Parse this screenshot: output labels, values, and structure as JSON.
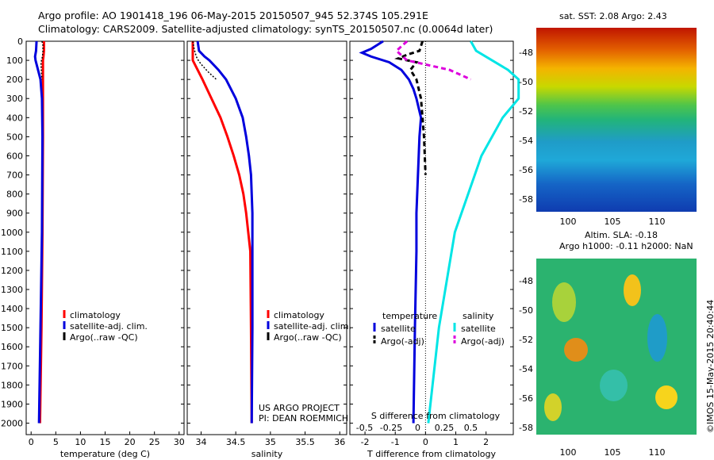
{
  "header": {
    "line1": "Argo profile: AO 1901418_196 06-May-2015 20150507_945 52.374S 105.291E",
    "line2": "Climatology: CARS2009. Satellite-adjusted climatology: synTS_20150507.nc (0.0064d later)"
  },
  "maps": {
    "sst_title": "sat. SST: 2.08 Argo: 2.43",
    "sla_title1": "Altim. SLA: -0.18",
    "sla_title2": "Argo h1000: -0.11 h2000: NaN",
    "credit": "©IMOS 15-May-2015 20:40:44",
    "lat_ticks": [
      "-48",
      "-50",
      "-52",
      "-54",
      "-56",
      "-58"
    ],
    "lon_ticks": [
      "100",
      "105",
      "110"
    ]
  },
  "colors": {
    "red": "#ff0000",
    "blue": "#0000dd",
    "cyan": "#00e5e5",
    "magenta": "#dd00dd",
    "black": "#000000"
  },
  "chart_data": [
    {
      "type": "line",
      "xlabel": "temperature (deg C)",
      "ylabel": "",
      "xlim": [
        -1,
        31
      ],
      "ylim": [
        2060,
        0
      ],
      "x_ticks": [
        "0",
        "5",
        "10",
        "15",
        "20",
        "25",
        "30"
      ],
      "y_ticks": [
        "0",
        "100",
        "200",
        "300",
        "400",
        "500",
        "600",
        "700",
        "800",
        "900",
        "1000",
        "1100",
        "1200",
        "1300",
        "1400",
        "1500",
        "1600",
        "1700",
        "1800",
        "1900",
        "2000"
      ],
      "legend": [
        "climatology",
        "satellite-adj. clim.",
        "Argo(..raw -QC)"
      ],
      "series": [
        {
          "name": "climatology",
          "color": "#ff0000",
          "depth": [
            0,
            50,
            80,
            100,
            150,
            200,
            300,
            500,
            1000,
            1500,
            2000
          ],
          "values": [
            2.6,
            2.6,
            2.5,
            2.4,
            2.4,
            2.4,
            2.4,
            2.4,
            2.3,
            2.1,
            1.8
          ]
        },
        {
          "name": "satellite-adj. clim.",
          "color": "#0000dd",
          "depth": [
            0,
            50,
            80,
            100,
            150,
            200,
            300,
            500,
            1000,
            1500,
            2000
          ],
          "values": [
            1.1,
            1.0,
            0.8,
            0.9,
            1.4,
            1.9,
            2.2,
            2.3,
            2.2,
            1.9,
            1.6
          ]
        },
        {
          "name": "Argo(..raw -QC)",
          "color": "#000000",
          "depth": [
            0,
            20,
            50,
            80,
            100,
            120,
            200
          ],
          "values": [
            2.2,
            2.4,
            2.4,
            2.3,
            2.1,
            2.0,
            2.2
          ]
        }
      ]
    },
    {
      "type": "line",
      "xlabel": "salinity",
      "ylabel": "",
      "xlim": [
        33.8,
        36.1
      ],
      "ylim": [
        2060,
        0
      ],
      "x_ticks": [
        "34",
        "34.5",
        "35",
        "35.5",
        "36"
      ],
      "legend": [
        "climatology",
        "satellite-adj. clim.",
        "Argo(..raw -QC)"
      ],
      "annotation": [
        "US ARGO PROJECT",
        "PI: DEAN ROEMMICH"
      ],
      "series": [
        {
          "name": "climatology",
          "color": "#ff0000",
          "depth": [
            0,
            50,
            100,
            150,
            200,
            300,
            400,
            500,
            600,
            700,
            800,
            900,
            1000,
            1100,
            1500,
            2000
          ],
          "values": [
            33.88,
            33.88,
            33.88,
            33.95,
            34.02,
            34.15,
            34.28,
            34.38,
            34.47,
            34.55,
            34.61,
            34.65,
            34.68,
            34.71,
            34.72,
            34.73
          ]
        },
        {
          "name": "satellite-adj. clim.",
          "color": "#0000dd",
          "depth": [
            0,
            50,
            80,
            100,
            150,
            200,
            300,
            400,
            500,
            600,
            700,
            800,
            900,
            1000,
            1500,
            2000
          ],
          "values": [
            33.95,
            33.97,
            34.05,
            34.12,
            34.25,
            34.36,
            34.5,
            34.6,
            34.65,
            34.69,
            34.72,
            34.73,
            34.74,
            34.74,
            34.74,
            34.73
          ]
        },
        {
          "name": "Argo(..raw -QC)",
          "color": "#000000",
          "depth": [
            0,
            40,
            80,
            100,
            120,
            160,
            200
          ],
          "values": [
            33.88,
            33.9,
            33.93,
            33.96,
            34.0,
            34.1,
            34.22
          ]
        }
      ]
    },
    {
      "type": "line",
      "xlabel": "T difference from climatology",
      "xlabel_top": "S difference from climatology",
      "xlim": [
        -2.5,
        2.9
      ],
      "ylim": [
        2060,
        0
      ],
      "x_ticks": [
        "-2",
        "-1",
        "0",
        "1",
        "2"
      ],
      "x_ticks_top": [
        "-0.5",
        "-0.25",
        "0",
        "0.25",
        "0.5"
      ],
      "legend_groups": [
        {
          "title": "temperature",
          "items": [
            "satellite",
            "Argo(-adj)"
          ]
        },
        {
          "title": "salinity",
          "items": [
            "satellite",
            "Argo(-adj)"
          ]
        }
      ],
      "series": [
        {
          "name": "satellite",
          "group": "temperature",
          "color": "#0000dd",
          "depth": [
            0,
            40,
            60,
            80,
            110,
            150,
            200,
            250,
            300,
            400,
            500,
            700,
            900,
            1100,
            1500,
            2000
          ],
          "values": [
            -1.4,
            -1.8,
            -2.1,
            -1.8,
            -1.2,
            -0.8,
            -0.55,
            -0.4,
            -0.3,
            -0.15,
            -0.2,
            -0.25,
            -0.3,
            -0.3,
            -0.35,
            -0.4
          ]
        },
        {
          "name": "Argo(-adj)",
          "group": "temperature",
          "color": "#000000",
          "depth": [
            0,
            50,
            70,
            90,
            110,
            150,
            200,
            300,
            500,
            700
          ],
          "values": [
            -0.1,
            -0.2,
            -0.6,
            -0.9,
            -0.3,
            -0.5,
            -0.3,
            -0.15,
            -0.05,
            0.0
          ]
        },
        {
          "name": "satellite",
          "group": "salinity",
          "color": "#00e5e5",
          "depth": [
            0,
            50,
            100,
            150,
            200,
            300,
            400,
            600,
            1000,
            1500,
            2000
          ],
          "values": [
            0.5,
            0.55,
            0.7,
            0.85,
            0.95,
            0.95,
            0.8,
            0.6,
            0.35,
            0.2,
            0.1
          ]
        },
        {
          "name": "Argo(-adj)",
          "group": "salinity",
          "color": "#dd00dd",
          "depth": [
            0,
            50,
            100,
            150,
            200
          ],
          "values": [
            -0.1,
            -0.2,
            -0.1,
            0.3,
            0.5
          ]
        }
      ]
    }
  ]
}
